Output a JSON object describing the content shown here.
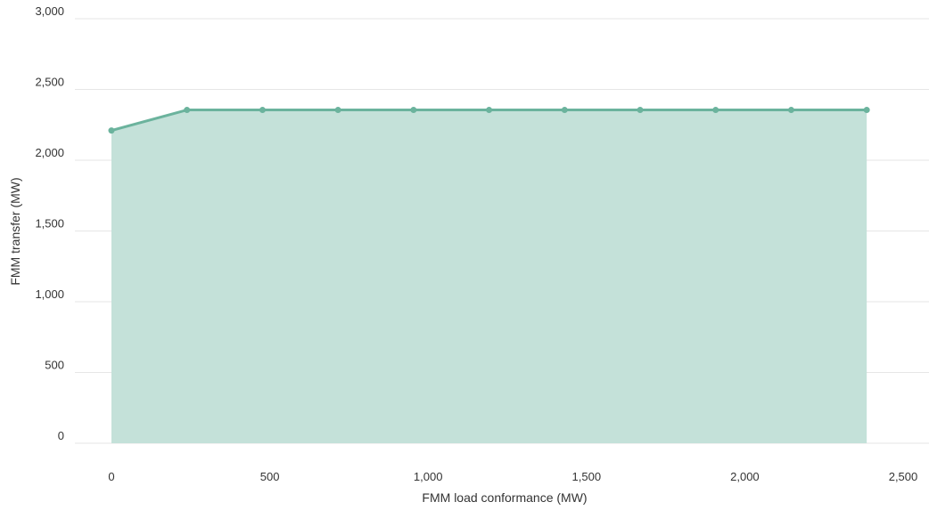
{
  "chart_data": {
    "type": "area",
    "title": "",
    "xlabel": "FMM load conformance (MW)",
    "ylabel": "FMM transfer (MW)",
    "xlim": [
      0,
      2500
    ],
    "ylim": [
      0,
      3000
    ],
    "x_ticks": [
      0,
      500,
      1000,
      1500,
      2000,
      2500
    ],
    "y_ticks": [
      0,
      500,
      1000,
      1500,
      2000,
      2500,
      3000
    ],
    "x_tick_labels": [
      "0",
      "500",
      "1,000",
      "1,500",
      "2,000",
      "2,500"
    ],
    "y_tick_labels": [
      "0",
      "500",
      "1,000",
      "1,500",
      "2,000",
      "2,500",
      "3,000"
    ],
    "grid": {
      "horizontal": true,
      "vertical": false
    },
    "legend": "none",
    "colors": {
      "line": "#6bb39d",
      "fill": "#c4e1d9",
      "grid": "#e6e6e6",
      "text": "#333333"
    },
    "series": [
      {
        "x": [
          0,
          238.5,
          477,
          715.5,
          954,
          1192.5,
          1431,
          1669.5,
          1908,
          2146.5,
          2385
        ],
        "y": [
          2210,
          2355,
          2355,
          2355,
          2355,
          2355,
          2355,
          2355,
          2355,
          2355,
          2355
        ]
      }
    ]
  }
}
